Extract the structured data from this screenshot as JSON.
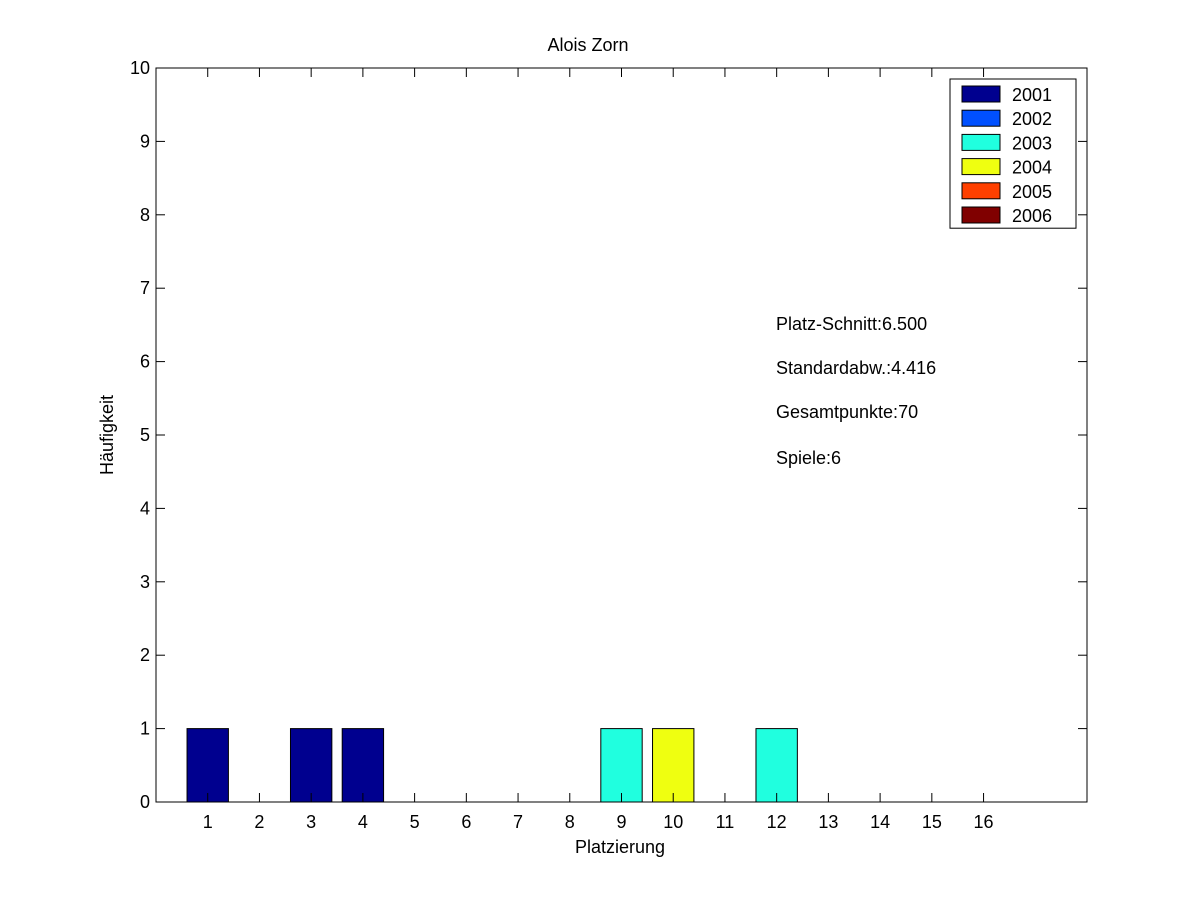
{
  "chart_data": {
    "type": "bar",
    "stacked": true,
    "title": "Alois Zorn",
    "xlabel": "Platzierung",
    "ylabel": "Häufigkeit",
    "xlim": [
      0,
      18
    ],
    "ylim": [
      0,
      10
    ],
    "categories": [
      1,
      2,
      3,
      4,
      5,
      6,
      7,
      8,
      9,
      10,
      11,
      12,
      13,
      14,
      15,
      16
    ],
    "yticks": [
      0,
      1,
      2,
      3,
      4,
      5,
      6,
      7,
      8,
      9,
      10
    ],
    "series": [
      {
        "name": "2001",
        "color": "#00008f",
        "values": [
          1,
          0,
          1,
          1,
          0,
          0,
          0,
          0,
          0,
          0,
          0,
          0,
          0,
          0,
          0,
          0
        ]
      },
      {
        "name": "2002",
        "color": "#0050ff",
        "values": [
          0,
          0,
          0,
          0,
          0,
          0,
          0,
          0,
          0,
          0,
          0,
          0,
          0,
          0,
          0,
          0
        ]
      },
      {
        "name": "2003",
        "color": "#20ffdf",
        "values": [
          0,
          0,
          0,
          0,
          0,
          0,
          0,
          0,
          1,
          0,
          0,
          1,
          0,
          0,
          0,
          0
        ]
      },
      {
        "name": "2004",
        "color": "#efff10",
        "values": [
          0,
          0,
          0,
          0,
          0,
          0,
          0,
          0,
          0,
          1,
          0,
          0,
          0,
          0,
          0,
          0
        ]
      },
      {
        "name": "2005",
        "color": "#ff4000",
        "values": [
          0,
          0,
          0,
          0,
          0,
          0,
          0,
          0,
          0,
          0,
          0,
          0,
          0,
          0,
          0,
          0
        ]
      },
      {
        "name": "2006",
        "color": "#800000",
        "values": [
          0,
          0,
          0,
          0,
          0,
          0,
          0,
          0,
          0,
          0,
          0,
          0,
          0,
          0,
          0,
          0
        ]
      }
    ],
    "legend": "top-right",
    "grid": false,
    "annotations": [
      "Platz-Schnitt:6.500",
      "Standardabw.:4.416",
      "Gesamtpunkte:70",
      "Spiele:6"
    ]
  }
}
